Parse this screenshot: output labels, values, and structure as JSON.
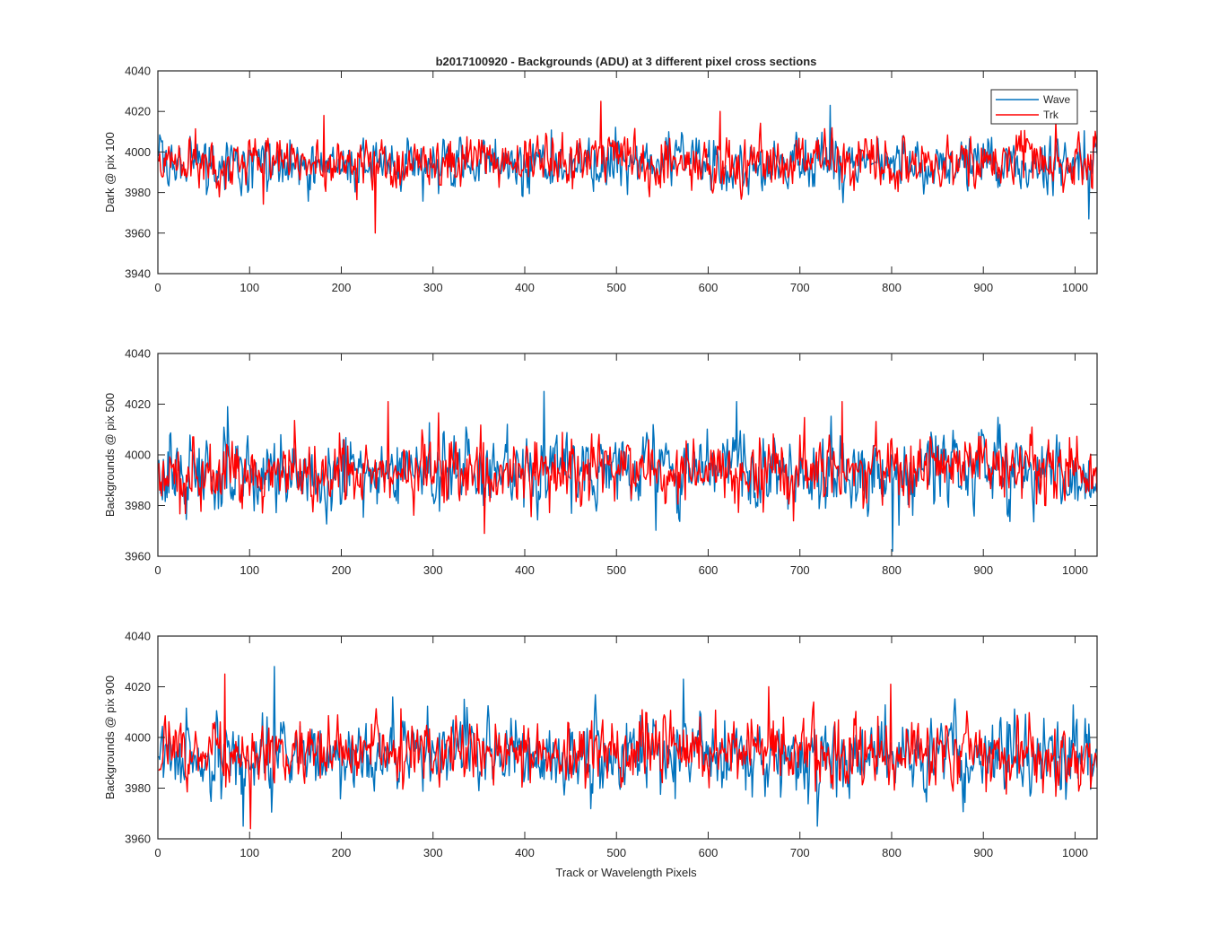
{
  "figure": {
    "title": "b2017100920 - Backgrounds (ADU) at 3 different pixel cross sections",
    "xlabel": "Track or Wavelength Pixels"
  },
  "legend": {
    "entries": [
      {
        "label": "Wave",
        "color": "#0072BD"
      },
      {
        "label": "Trk",
        "color": "#FF0000"
      }
    ],
    "placement": "top-right (top panel)"
  },
  "chart_data": [
    {
      "type": "line",
      "title": "b2017100920 - Backgrounds (ADU) at 3 different pixel cross sections",
      "xlabel": "",
      "ylabel": "Dark @ pix 100",
      "xlim": [
        0,
        1024
      ],
      "ylim": [
        3940,
        4040
      ],
      "xticks": [
        0,
        100,
        200,
        300,
        400,
        500,
        600,
        700,
        800,
        900,
        1000
      ],
      "yticks": [
        3940,
        3960,
        3980,
        4000,
        4020,
        4040
      ],
      "grid": false,
      "series": [
        {
          "name": "Wave",
          "color": "#0072BD",
          "n_points": 1024,
          "mean": 3994,
          "spread": 6,
          "noted_extrema": [
            {
              "x": 732,
              "y": 4023
            },
            {
              "x": 1014,
              "y": 3967
            }
          ]
        },
        {
          "name": "Trk",
          "color": "#FF0000",
          "n_points": 1024,
          "mean": 3995,
          "spread": 6,
          "noted_extrema": [
            {
              "x": 236,
              "y": 3960
            },
            {
              "x": 482,
              "y": 4025
            },
            {
              "x": 180,
              "y": 4018
            },
            {
              "x": 612,
              "y": 4020
            }
          ]
        }
      ]
    },
    {
      "type": "line",
      "title": "",
      "xlabel": "",
      "ylabel": "Backgrounds @ pix 500",
      "xlim": [
        0,
        1024
      ],
      "ylim": [
        3960,
        4040
      ],
      "xticks": [
        0,
        100,
        200,
        300,
        400,
        500,
        600,
        700,
        800,
        900,
        1000
      ],
      "yticks": [
        3960,
        3980,
        4000,
        4020,
        4040
      ],
      "grid": false,
      "series": [
        {
          "name": "Wave",
          "color": "#0072BD",
          "n_points": 1024,
          "mean": 3993,
          "spread": 7,
          "noted_extrema": [
            {
              "x": 420,
              "y": 4025
            },
            {
              "x": 800,
              "y": 3962
            },
            {
              "x": 630,
              "y": 4021
            },
            {
              "x": 75,
              "y": 4019
            }
          ]
        },
        {
          "name": "Trk",
          "color": "#FF0000",
          "n_points": 1024,
          "mean": 3994,
          "spread": 6,
          "noted_extrema": [
            {
              "x": 250,
              "y": 4021
            },
            {
              "x": 745,
              "y": 4021
            },
            {
              "x": 355,
              "y": 3969
            }
          ]
        }
      ]
    },
    {
      "type": "line",
      "title": "",
      "xlabel": "Track or Wavelength Pixels",
      "ylabel": "Backgrounds @ pix 900",
      "xlim": [
        0,
        1024
      ],
      "ylim": [
        3960,
        4040
      ],
      "xticks": [
        0,
        100,
        200,
        300,
        400,
        500,
        600,
        700,
        800,
        900,
        1000
      ],
      "yticks": [
        3960,
        3980,
        4000,
        4020,
        4040
      ],
      "grid": false,
      "series": [
        {
          "name": "Wave",
          "color": "#0072BD",
          "n_points": 1024,
          "mean": 3993,
          "spread": 7,
          "noted_extrema": [
            {
              "x": 126,
              "y": 4028
            },
            {
              "x": 718,
              "y": 3965
            },
            {
              "x": 92,
              "y": 3965
            },
            {
              "x": 572,
              "y": 4023
            }
          ]
        },
        {
          "name": "Trk",
          "color": "#FF0000",
          "n_points": 1024,
          "mean": 3994,
          "spread": 6,
          "noted_extrema": [
            {
              "x": 72,
              "y": 4025
            },
            {
              "x": 100,
              "y": 3964
            },
            {
              "x": 798,
              "y": 4021
            },
            {
              "x": 665,
              "y": 4020
            }
          ]
        }
      ]
    }
  ]
}
